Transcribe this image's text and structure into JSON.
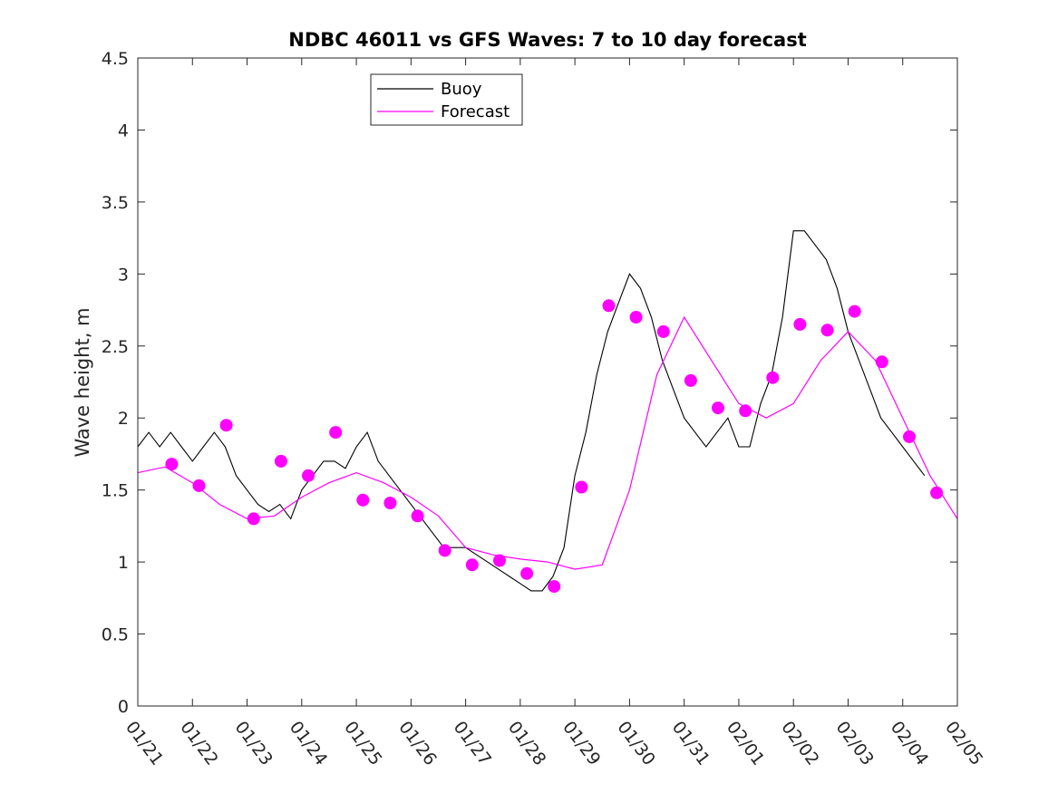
{
  "chart_data": {
    "type": "line",
    "title": "NDBC 46011 vs GFS Waves: 7 to 10 day forecast",
    "xlabel": "",
    "ylabel": "Wave height, m",
    "xlim": [
      0,
      15
    ],
    "ylim": [
      0,
      4.5
    ],
    "yticks": [
      0,
      0.5,
      1,
      1.5,
      2,
      2.5,
      3,
      3.5,
      4,
      4.5
    ],
    "ytick_labels": [
      "0",
      "0.5",
      "1",
      "1.5",
      "2",
      "2.5",
      "3",
      "3.5",
      "4",
      "4.5"
    ],
    "xtick_labels": [
      "01/21",
      "01/22",
      "01/23",
      "01/24",
      "01/25",
      "01/26",
      "01/27",
      "01/28",
      "01/29",
      "01/30",
      "01/31",
      "02/01",
      "02/02",
      "02/03",
      "02/04",
      "02/05"
    ],
    "legend": {
      "location": "top",
      "entries": [
        "Buoy",
        "Forecast"
      ]
    },
    "colors": {
      "buoy": "#000000",
      "forecast": "#ff00ff"
    },
    "series": [
      {
        "name": "Buoy",
        "x": [
          0.0,
          0.2,
          0.4,
          0.6,
          0.8,
          1.0,
          1.2,
          1.4,
          1.6,
          1.8,
          2.0,
          2.2,
          2.4,
          2.6,
          2.8,
          3.0,
          3.2,
          3.4,
          3.6,
          3.8,
          4.0,
          4.2,
          4.4,
          4.6,
          4.8,
          5.0,
          5.2,
          5.4,
          5.6,
          5.8,
          6.0,
          6.2,
          6.4,
          6.6,
          6.8,
          7.0,
          7.2,
          7.4,
          7.6,
          7.8,
          8.0,
          8.2,
          8.4,
          8.6,
          8.8,
          9.0,
          9.2,
          9.4,
          9.6,
          9.8,
          10.0,
          10.2,
          10.4,
          10.6,
          10.8,
          11.0,
          11.2,
          11.4,
          11.6,
          11.8,
          12.0,
          12.2,
          12.4,
          12.6,
          12.8,
          13.0,
          13.2,
          13.4,
          13.6,
          13.8,
          14.0,
          14.2,
          14.4
        ],
        "values": [
          1.8,
          1.9,
          1.8,
          1.9,
          1.8,
          1.7,
          1.8,
          1.9,
          1.8,
          1.6,
          1.5,
          1.4,
          1.35,
          1.4,
          1.3,
          1.5,
          1.6,
          1.7,
          1.7,
          1.65,
          1.8,
          1.9,
          1.7,
          1.6,
          1.5,
          1.4,
          1.3,
          1.2,
          1.1,
          1.1,
          1.1,
          1.05,
          1.0,
          0.95,
          0.9,
          0.85,
          0.8,
          0.8,
          0.9,
          1.1,
          1.6,
          1.9,
          2.3,
          2.6,
          2.8,
          3.0,
          2.9,
          2.7,
          2.4,
          2.2,
          2.0,
          1.9,
          1.8,
          1.9,
          2.0,
          1.8,
          1.8,
          2.1,
          2.3,
          2.7,
          3.3,
          3.3,
          3.2,
          3.1,
          2.9,
          2.6,
          2.4,
          2.2,
          2.0,
          1.9,
          1.8,
          1.7,
          1.6
        ]
      },
      {
        "name": "Forecast",
        "x": [
          0.0,
          0.5,
          1.0,
          1.5,
          2.0,
          2.5,
          3.0,
          3.5,
          4.0,
          4.5,
          5.0,
          5.5,
          6.0,
          6.5,
          7.0,
          7.5,
          8.0,
          8.5,
          9.0,
          9.5,
          10.0,
          10.5,
          11.0,
          11.5,
          12.0,
          12.5,
          13.0,
          13.5,
          14.0,
          14.5,
          15.0
        ],
        "values": [
          1.62,
          1.66,
          1.55,
          1.4,
          1.3,
          1.32,
          1.45,
          1.55,
          1.62,
          1.55,
          1.45,
          1.32,
          1.1,
          1.05,
          1.02,
          1.0,
          0.95,
          0.98,
          1.5,
          2.3,
          2.7,
          2.4,
          2.1,
          2.0,
          2.1,
          2.4,
          2.6,
          2.4,
          2.0,
          1.6,
          1.3
        ]
      }
    ],
    "forecast_points": {
      "x": [
        0.62,
        1.12,
        1.62,
        2.12,
        2.62,
        3.12,
        3.62,
        4.12,
        4.62,
        5.12,
        5.62,
        6.12,
        6.62,
        7.12,
        7.62,
        8.12,
        8.62,
        9.12,
        9.62,
        10.12,
        10.62,
        11.12,
        11.62,
        12.12,
        12.62,
        13.12,
        13.62,
        14.12,
        14.62
      ],
      "values": [
        1.68,
        1.53,
        1.95,
        1.3,
        1.7,
        1.6,
        1.9,
        1.43,
        1.41,
        1.32,
        1.08,
        0.98,
        1.01,
        0.92,
        0.83,
        1.52,
        2.78,
        2.7,
        2.6,
        2.26,
        2.07,
        2.05,
        2.28,
        2.65,
        2.61,
        2.74,
        2.39,
        1.87,
        1.48
      ]
    }
  }
}
